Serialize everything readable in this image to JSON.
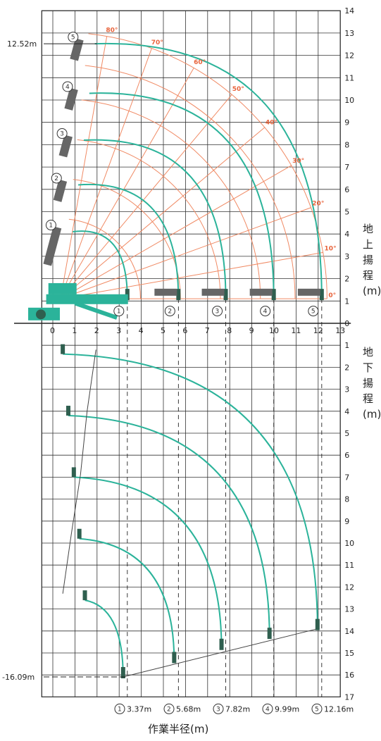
{
  "chart_data": {
    "type": "diagram",
    "xlabel": "作業半径(m)",
    "ylabel_above": [
      "地",
      "上",
      "揚",
      "程",
      "(m)"
    ],
    "ylabel_below": [
      "地",
      "下",
      "揚",
      "程",
      "(m)"
    ],
    "x_ticks": [
      0,
      1,
      2,
      3,
      4,
      5,
      6,
      7,
      8,
      9,
      10,
      11,
      12,
      13
    ],
    "y_ticks_above": [
      0,
      1,
      2,
      3,
      4,
      5,
      6,
      7,
      8,
      9,
      10,
      11,
      12,
      13,
      14
    ],
    "y_ticks_below": [
      1,
      2,
      3,
      4,
      5,
      6,
      7,
      8,
      9,
      10,
      11,
      12,
      13,
      14,
      15,
      16,
      17
    ],
    "xlim": [
      -0.5,
      13
    ],
    "ylim": [
      -17,
      14
    ],
    "boom_angles": [
      0,
      10,
      20,
      30,
      40,
      50,
      60,
      70,
      80
    ],
    "max_height_label": "12.52m",
    "max_height": 12.52,
    "max_depth_label": "-16.09m",
    "max_depth": -16.09,
    "booms": [
      {
        "num": "1",
        "radius_label": "3.37m",
        "radius": 3.37,
        "tip_height": 4.1,
        "depth": -16.09
      },
      {
        "num": "2",
        "radius_label": "5.68m",
        "radius": 5.68,
        "tip_height": 6.2,
        "depth": -15.4
      },
      {
        "num": "3",
        "radius_label": "7.82m",
        "radius": 7.82,
        "tip_height": 8.2,
        "depth": -14.8
      },
      {
        "num": "4",
        "radius_label": "9.99m",
        "radius": 9.99,
        "tip_height": 10.3,
        "depth": -14.3
      },
      {
        "num": "5",
        "radius_label": "12.16m",
        "radius": 12.16,
        "tip_height": 12.52,
        "depth": -13.9
      }
    ]
  }
}
